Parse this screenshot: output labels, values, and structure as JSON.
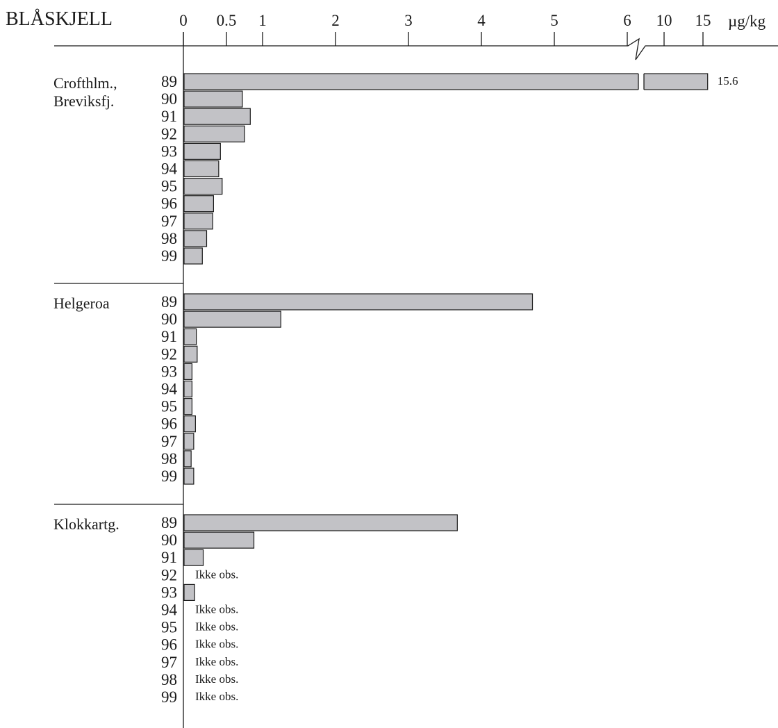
{
  "chart_data": {
    "type": "bar",
    "orientation": "horizontal",
    "title": "BLÅSKJELL",
    "unit": "µg/kg",
    "axis": {
      "tick_labels": [
        "0",
        "0.5",
        "1",
        "2",
        "3",
        "4",
        "5",
        "6",
        "10",
        "15"
      ],
      "broken_scale": true,
      "break_between": [
        6,
        10
      ]
    },
    "groups": [
      {
        "label_lines": [
          "Crofthlm.,",
          "Breviksfj."
        ],
        "years": [
          "89",
          "90",
          "91",
          "92",
          "93",
          "94",
          "95",
          "96",
          "97",
          "98",
          "99"
        ],
        "values": [
          15.6,
          0.72,
          0.83,
          0.75,
          0.43,
          0.41,
          0.45,
          0.35,
          0.34,
          0.27,
          0.22
        ],
        "annotations": [
          "15.6",
          "",
          "",
          "",
          "",
          "",
          "",
          "",
          "",
          "",
          ""
        ]
      },
      {
        "label_lines": [
          "Helgeroa"
        ],
        "years": [
          "89",
          "90",
          "91",
          "92",
          "93",
          "94",
          "95",
          "96",
          "97",
          "98",
          "99"
        ],
        "values": [
          4.7,
          1.25,
          0.15,
          0.16,
          0.1,
          0.1,
          0.1,
          0.14,
          0.12,
          0.09,
          0.12
        ],
        "annotations": [
          "",
          "",
          "",
          "",
          "",
          "",
          "",
          "",
          "",
          "",
          ""
        ]
      },
      {
        "label_lines": [
          "Klokkartg."
        ],
        "years": [
          "89",
          "90",
          "91",
          "92",
          "93",
          "94",
          "95",
          "96",
          "97",
          "98",
          "99"
        ],
        "values": [
          3.67,
          0.88,
          0.23,
          null,
          0.13,
          null,
          null,
          null,
          null,
          null,
          null
        ],
        "annotations": [
          "",
          "",
          "",
          "Ikke obs.",
          "",
          "Ikke obs.",
          "Ikke obs.",
          "Ikke obs.",
          "Ikke obs.",
          "Ikke obs.",
          "Ikke obs."
        ]
      }
    ]
  }
}
